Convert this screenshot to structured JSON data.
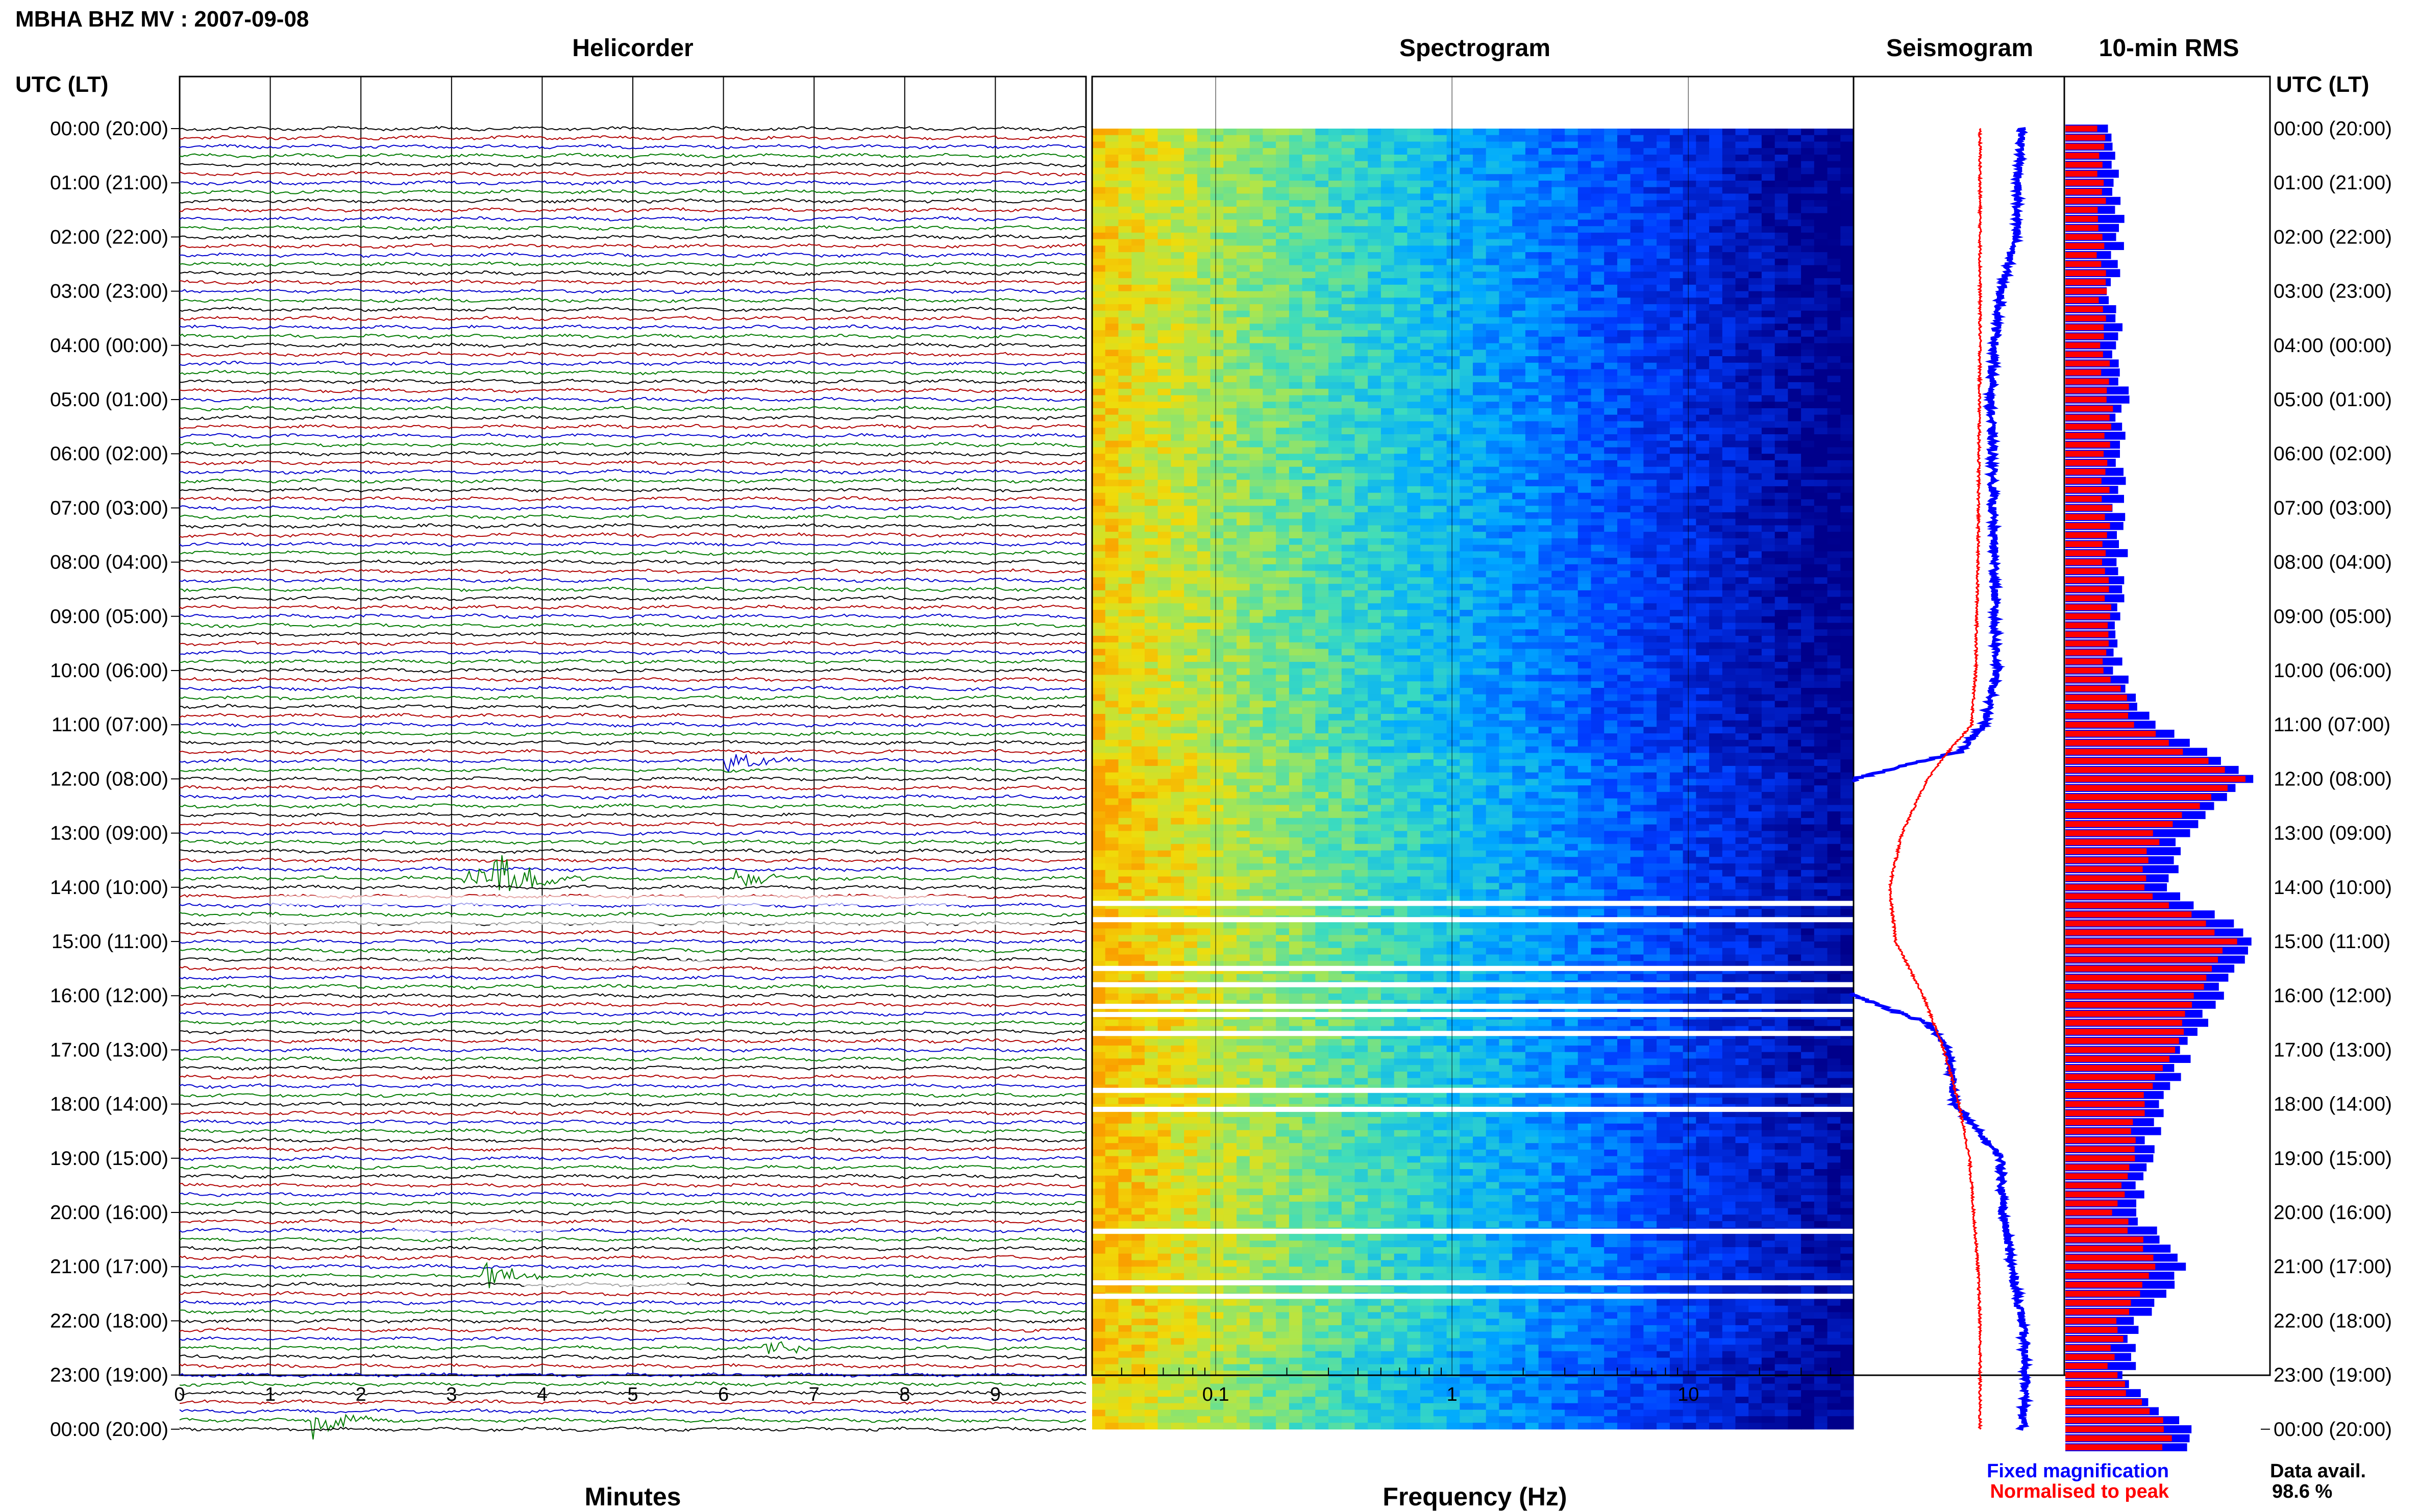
{
  "header": {
    "station_title": "MBHA BHZ MV : 2007-09-08",
    "time_axis_label_left": "UTC (LT)",
    "time_axis_label_right": "UTC (LT)"
  },
  "panels": {
    "helicorder_title": "Helicorder",
    "spectrogram_title": "Spectrogram",
    "seismogram_title": "Seismogram",
    "rms_title": "10-min RMS"
  },
  "time_labels": [
    "00:00 (20:00)",
    "01:00 (21:00)",
    "02:00 (22:00)",
    "03:00 (23:00)",
    "04:00 (00:00)",
    "05:00 (01:00)",
    "06:00 (02:00)",
    "07:00 (03:00)",
    "08:00 (04:00)",
    "09:00 (05:00)",
    "10:00 (06:00)",
    "11:00 (07:00)",
    "12:00 (08:00)",
    "13:00 (09:00)",
    "14:00 (10:00)",
    "15:00 (11:00)",
    "16:00 (12:00)",
    "17:00 (13:00)",
    "18:00 (14:00)",
    "19:00 (15:00)",
    "20:00 (16:00)",
    "21:00 (17:00)",
    "22:00 (18:00)",
    "23:00 (19:00)",
    "00:00 (20:00)"
  ],
  "legend": {
    "fixed_label": "Fixed magnification",
    "normalised_label": "Normalised to peak",
    "avail_label": "Data avail.",
    "avail_value": "98.6 %"
  },
  "colors": {
    "trace_cycle": [
      "#000000",
      "#b00000",
      "#0000cc",
      "#007a00"
    ],
    "fixed": "#0000ff",
    "normalised": "#ff0000",
    "spec_low": "#00008b",
    "spec_high": "#f5d000"
  },
  "chart_data": [
    {
      "type": "line",
      "name": "helicorder",
      "title": "Helicorder",
      "xlabel": "Minutes",
      "x_ticks": [
        "0",
        "1",
        "2",
        "3",
        "4",
        "5",
        "6",
        "7",
        "8",
        "9"
      ],
      "xlim": [
        0,
        10
      ],
      "ylim_hours": [
        0,
        24
      ],
      "row_interval_minutes": 10,
      "events": [
        {
          "hour": 11.6,
          "minute": 6.1,
          "amplitude": 3.0,
          "color_index": 1
        },
        {
          "hour": 13.9,
          "minute": 3.2,
          "amplitude": 3.5,
          "color_index": 0
        },
        {
          "hour": 13.9,
          "minute": 3.5,
          "amplitude": 6.0,
          "color_index": 0
        },
        {
          "hour": 13.9,
          "minute": 3.9,
          "amplitude": 4.0,
          "color_index": 0
        },
        {
          "hour": 13.9,
          "minute": 6.2,
          "amplitude": 2.5,
          "color_index": 0
        },
        {
          "hour": 21.2,
          "minute": 3.4,
          "amplitude": 3.5,
          "color_index": 3
        },
        {
          "hour": 22.5,
          "minute": 6.5,
          "amplitude": 3.0,
          "color_index": 3
        },
        {
          "hour": 23.9,
          "minute": 1.55,
          "amplitude": 4.5,
          "color_index": 2
        }
      ]
    },
    {
      "type": "heatmap",
      "name": "spectrogram",
      "title": "Spectrogram",
      "xlabel": "Frequency (Hz)",
      "x_scale": "log",
      "xlim": [
        0.03,
        50
      ],
      "x_ticks": [
        0.1,
        1,
        10
      ],
      "gaps_hours": [
        14.25,
        14.55,
        15.45,
        15.75,
        16.15,
        16.3,
        16.65,
        17.7,
        18.05,
        20.3,
        21.25,
        21.5
      ]
    },
    {
      "type": "line",
      "name": "seismogram",
      "title": "Seismogram",
      "series": [
        {
          "name": "Fixed magnification",
          "hours": [
            0,
            1,
            2,
            3,
            4,
            5,
            6,
            7,
            8,
            9,
            10,
            11,
            11.5,
            12,
            16,
            16.5,
            17,
            18,
            19,
            20,
            21,
            22,
            23,
            24
          ],
          "values": [
            0.8,
            0.78,
            0.77,
            0.7,
            0.67,
            0.65,
            0.66,
            0.66,
            0.67,
            0.67,
            0.68,
            0.62,
            0.5,
            0.0,
            0.0,
            0.35,
            0.45,
            0.48,
            0.7,
            0.71,
            0.75,
            0.8,
            0.82,
            0.8
          ]
        },
        {
          "name": "Normalised to peak",
          "hours": [
            0,
            4,
            8,
            10,
            11,
            11.5,
            12,
            13,
            14,
            15,
            16,
            17,
            18,
            19,
            20,
            21,
            22,
            23,
            24
          ],
          "values": [
            0.6,
            0.6,
            0.59,
            0.58,
            0.56,
            0.45,
            0.35,
            0.23,
            0.17,
            0.2,
            0.33,
            0.43,
            0.5,
            0.55,
            0.57,
            0.59,
            0.6,
            0.6,
            0.6
          ]
        }
      ]
    },
    {
      "type": "bar",
      "name": "10-min RMS",
      "title": "10-min RMS",
      "series": [
        {
          "name": "Fixed magnification",
          "hourly_values": [
            0.23,
            0.25,
            0.27,
            0.24,
            0.26,
            0.28,
            0.27,
            0.27,
            0.27,
            0.28,
            0.27,
            0.45,
            0.92,
            0.6,
            0.48,
            0.95,
            0.76,
            0.6,
            0.48,
            0.4,
            0.33,
            0.58,
            0.35,
            0.3,
            0.58
          ]
        },
        {
          "name": "Normalised to peak",
          "hourly_values": [
            0.17,
            0.18,
            0.18,
            0.18,
            0.19,
            0.21,
            0.2,
            0.2,
            0.2,
            0.21,
            0.21,
            0.34,
            0.87,
            0.45,
            0.36,
            0.82,
            0.63,
            0.52,
            0.38,
            0.32,
            0.25,
            0.46,
            0.27,
            0.23,
            0.5
          ]
        }
      ]
    }
  ]
}
